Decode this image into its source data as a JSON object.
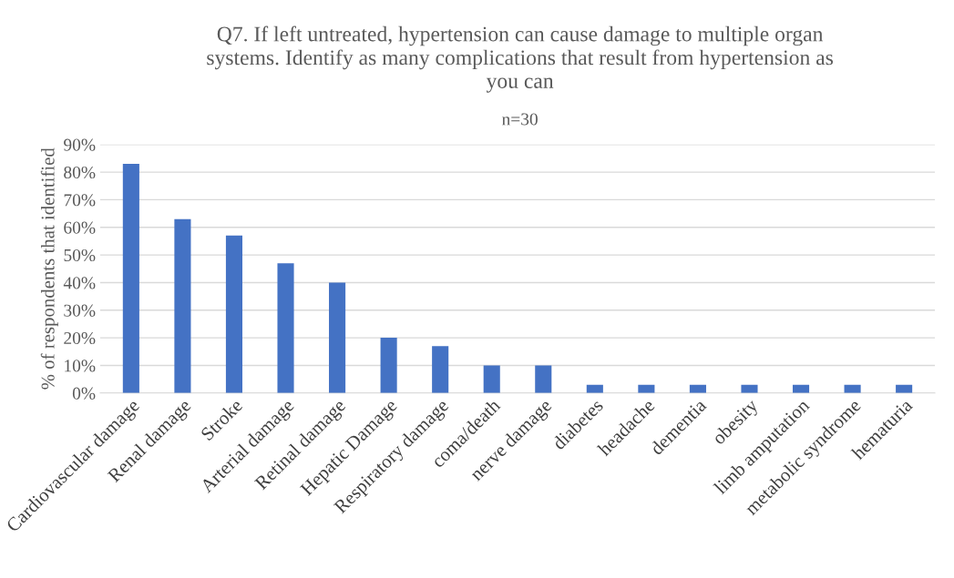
{
  "chart_data": {
    "type": "bar",
    "title": "Q7. If left untreated, hypertension can cause damage to multiple organ\nsystems. Identify as many complications that result from hypertension as\nyou can",
    "subtitle": "n=30",
    "ylabel": "% of respondents that identified",
    "categories": [
      "Cardiovascular damage",
      "Renal damage",
      "Stroke",
      "Arterial damage",
      "Retinal damage",
      "Hepatic Damage",
      "Respiratory damage",
      "coma/death",
      "nerve damage",
      "diabetes",
      "headache",
      "dementia",
      "obesity",
      "limb amputation",
      "metabolic syndrome",
      "hematuria"
    ],
    "values": [
      83,
      63,
      57,
      47,
      40,
      20,
      17,
      10,
      10,
      3,
      3,
      3,
      3,
      3,
      3,
      3
    ],
    "color": "#4472c4",
    "ylim": [
      0,
      90
    ],
    "yticks": [
      {
        "value": 0,
        "label": "0%"
      },
      {
        "value": 10,
        "label": "10%"
      },
      {
        "value": 20,
        "label": "20%"
      },
      {
        "value": 30,
        "label": "30%"
      },
      {
        "value": 40,
        "label": "40%"
      },
      {
        "value": 50,
        "label": "50%"
      },
      {
        "value": 60,
        "label": "60%"
      },
      {
        "value": 70,
        "label": "70%"
      },
      {
        "value": 80,
        "label": "80%"
      },
      {
        "value": 90,
        "label": "90%"
      }
    ],
    "grid": "y"
  }
}
